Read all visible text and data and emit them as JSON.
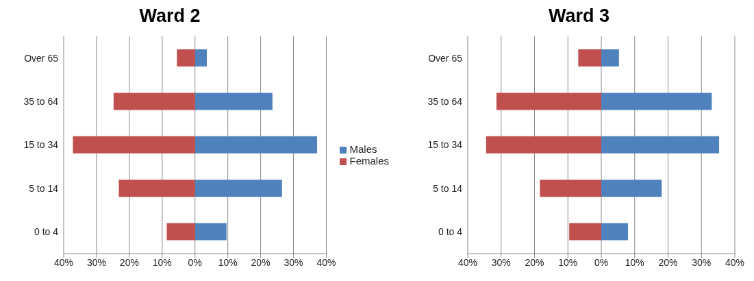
{
  "chart_data": [
    {
      "type": "bar",
      "title": "Ward 2",
      "orientation": "horizontal",
      "stacked": true,
      "categories": [
        "Over 65",
        "35 to 64",
        "15 to 34",
        "5 to 14",
        "0 to 4"
      ],
      "series": [
        {
          "name": "Males",
          "color": "#4f81bd",
          "values": [
            3.6,
            23.6,
            37.2,
            26.5,
            9.6
          ]
        },
        {
          "name": "Females",
          "color": "#c0504d",
          "values": [
            -5.5,
            -24.8,
            -37.2,
            -23.2,
            -8.6
          ]
        }
      ],
      "xlim": [
        -40,
        40
      ],
      "xticks": [
        {
          "value": -40,
          "label": "40%"
        },
        {
          "value": -30,
          "label": "30%"
        },
        {
          "value": -20,
          "label": "20%"
        },
        {
          "value": -10,
          "label": "10%"
        },
        {
          "value": 0,
          "label": "0%"
        },
        {
          "value": 10,
          "label": "10%"
        },
        {
          "value": 20,
          "label": "20%"
        },
        {
          "value": 30,
          "label": "30%"
        },
        {
          "value": 40,
          "label": "40%"
        }
      ],
      "grid": "x",
      "legend": "right"
    },
    {
      "type": "bar",
      "title": "Ward 3",
      "orientation": "horizontal",
      "stacked": true,
      "categories": [
        "Over 65",
        "35 to 64",
        "15 to 34",
        "5 to 14",
        "0 to 4"
      ],
      "series": [
        {
          "color": "#4f81bd",
          "values": [
            5.3,
            33.1,
            35.3,
            18.1,
            8.0
          ]
        },
        {
          "color": "#c0504d",
          "values": [
            -6.9,
            -31.4,
            -34.5,
            -18.4,
            -9.6
          ]
        }
      ],
      "xlim": [
        -40,
        40
      ],
      "xticks": [
        {
          "value": -40,
          "label": "40%"
        },
        {
          "value": -30,
          "label": "30%"
        },
        {
          "value": -20,
          "label": "20%"
        },
        {
          "value": -10,
          "label": "10%"
        },
        {
          "value": 0,
          "label": "0%"
        },
        {
          "value": 10,
          "label": "10%"
        },
        {
          "value": 20,
          "label": "20%"
        },
        {
          "value": 30,
          "label": "30%"
        },
        {
          "value": 40,
          "label": "40%"
        }
      ],
      "grid": "x",
      "legend": false
    }
  ]
}
